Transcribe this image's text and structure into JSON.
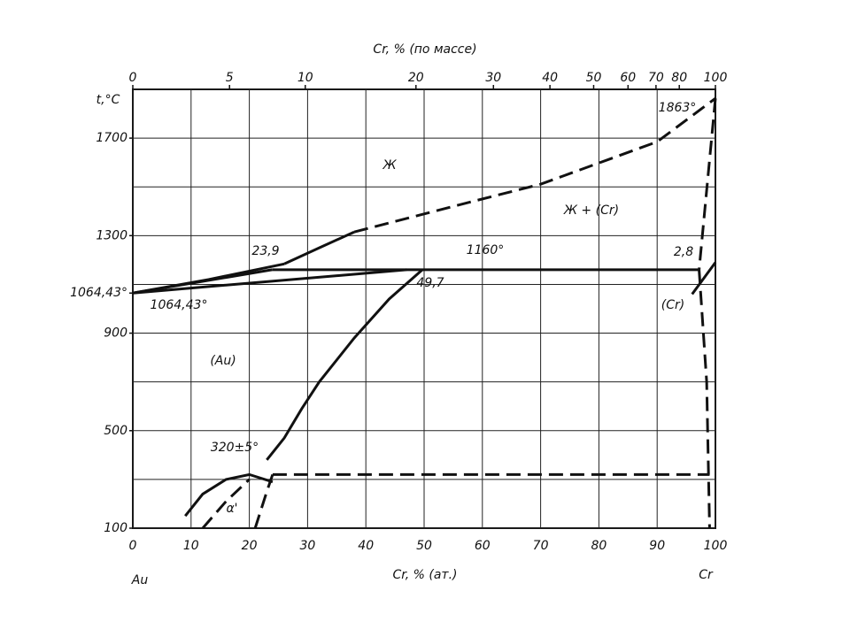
{
  "chart_data": {
    "type": "phase",
    "x2label": "Cr, % (по массе)",
    "xlabel": "Cr, % (ат.)",
    "ylabel": "t,°C",
    "left_element": "Au",
    "right_element": "Cr",
    "xlim": [
      0,
      100
    ],
    "xticks": [
      0,
      10,
      20,
      30,
      40,
      50,
      60,
      70,
      80,
      90,
      100
    ],
    "x2ticks": [
      {
        "value": 0,
        "label": "0"
      },
      {
        "value": 16.6,
        "label": "5"
      },
      {
        "value": 29.6,
        "label": "10"
      },
      {
        "value": 48.6,
        "label": "20"
      },
      {
        "value": 61.9,
        "label": "30"
      },
      {
        "value": 71.6,
        "label": "40"
      },
      {
        "value": 79.1,
        "label": "50"
      },
      {
        "value": 85.0,
        "label": "60"
      },
      {
        "value": 89.8,
        "label": "70"
      },
      {
        "value": 93.8,
        "label": "80"
      },
      {
        "value": 100,
        "label": "100"
      }
    ],
    "ylim": [
      100,
      1900
    ],
    "yticks": [
      100,
      500,
      900,
      {
        "value": 1064.43,
        "label": "1064,43°"
      },
      1300,
      1700
    ],
    "ygrid": [
      100,
      300,
      500,
      700,
      900,
      1100,
      1300,
      1500,
      1700,
      1900
    ],
    "grid": true,
    "color": "#111111",
    "series": [
      {
        "x": [
          0,
          13,
          26
        ],
        "values": [
          1064.43,
          1120,
          1184
        ],
        "dash": false
      },
      {
        "x": [
          26,
          32,
          38
        ],
        "values": [
          1184,
          1250,
          1315
        ],
        "dash": false
      },
      {
        "x": [
          38,
          55,
          70,
          90,
          100
        ],
        "values": [
          1315,
          1420,
          1511,
          1685,
          1863
        ],
        "dash": true
      },
      {
        "x": [
          0,
          23.9
        ],
        "values": [
          1064.43,
          1160
        ],
        "dash": false
      },
      {
        "x": [
          0,
          47
        ],
        "values": [
          1064.43,
          1160
        ],
        "dash": false
      },
      {
        "x": [
          23.9,
          97.2
        ],
        "values": [
          1160,
          1160
        ],
        "dash": false
      },
      {
        "x": [
          49.7,
          44,
          38,
          32,
          29,
          26,
          23
        ],
        "values": [
          1160,
          1040,
          880,
          700,
          590,
          470,
          380
        ],
        "dash": false
      },
      {
        "x": [
          100,
          97.2
        ],
        "values": [
          1863,
          1160
        ],
        "dash": true
      },
      {
        "x": [
          97.2,
          98.5,
          99
        ],
        "values": [
          1160,
          700,
          100
        ],
        "dash": true
      },
      {
        "x": [
          96,
          100
        ],
        "values": [
          1060,
          1190
        ],
        "dash": false
      },
      {
        "x": [
          9,
          12,
          16,
          20,
          24
        ],
        "values": [
          150,
          240,
          300,
          320,
          290
        ],
        "dash": false
      },
      {
        "x": [
          12,
          16,
          20
        ],
        "values": [
          100,
          210,
          300
        ],
        "dash": true
      },
      {
        "x": [
          21,
          23,
          24
        ],
        "values": [
          100,
          250,
          320
        ],
        "dash": true
      },
      {
        "x": [
          24,
          99
        ],
        "values": [
          320,
          320
        ],
        "dash": true
      }
    ],
    "annotations": [
      "Ж",
      "Ж + (Cr)",
      "(Cr)",
      "(Au)",
      "α'",
      "1863°",
      "1160°",
      "23,9",
      "49,7",
      "2,8",
      "1064,43°",
      "320±5°"
    ]
  }
}
